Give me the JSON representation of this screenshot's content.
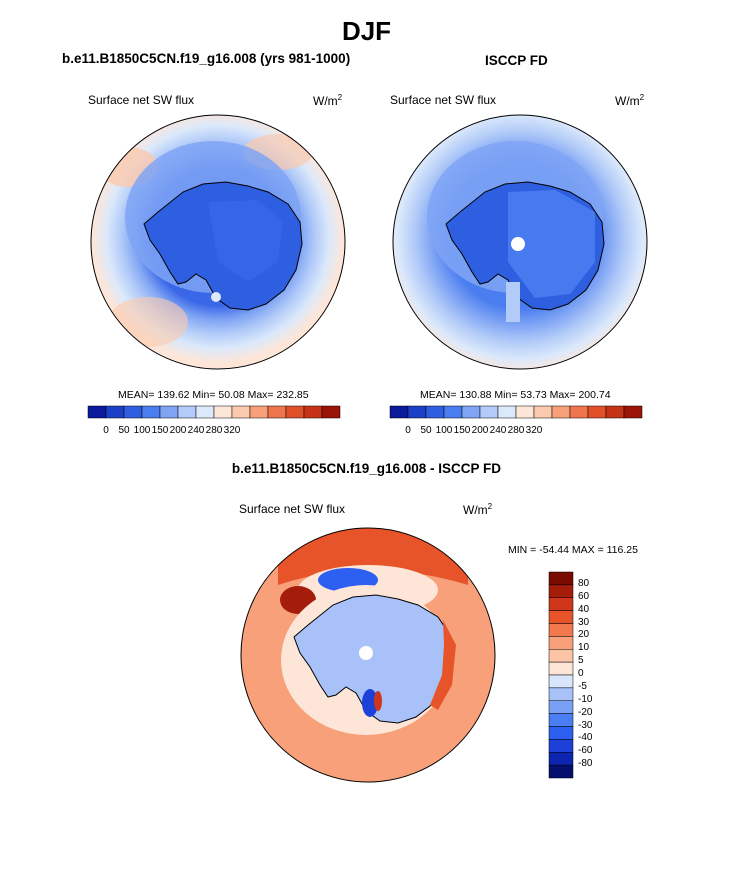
{
  "figure": {
    "season_title": "DJF",
    "units_base": "W/m",
    "units_exp": "2"
  },
  "panels": [
    {
      "title": "b.e11.B1850C5CN.f19_g16.008 (yrs 981-1000)",
      "variable_label": "Surface net SW flux",
      "stats": "MEAN= 139.62  Min=  50.08  Max= 232.85",
      "colorbar_ticks": [
        "0",
        "50",
        "100",
        "150",
        "200",
        "240",
        "280",
        "320"
      ]
    },
    {
      "title": "ISCCP FD",
      "variable_label": "Surface net SW flux",
      "stats": "MEAN= 130.88  Min=  53.73  Max= 200.74",
      "colorbar_ticks": [
        "0",
        "50",
        "100",
        "150",
        "200",
        "240",
        "280",
        "320"
      ]
    },
    {
      "title": "b.e11.B1850C5CN.f19_g16.008 - ISCCP FD",
      "variable_label": "Surface net SW flux",
      "stats": "MIN = -54.44 MAX = 116.25",
      "colorbar_ticks": [
        "80",
        "60",
        "40",
        "30",
        "20",
        "10",
        "5",
        "0",
        "-5",
        "-10",
        "-20",
        "-30",
        "-40",
        "-60",
        "-80"
      ]
    }
  ],
  "colors": {
    "abs_scale": [
      "#0a1a9a",
      "#1c3fc8",
      "#2e5fe0",
      "#4a7df0",
      "#7fa4f4",
      "#b2cbf8",
      "#dce9fb",
      "#fde6d8",
      "#fbc9ae",
      "#f7a07a",
      "#f0744c",
      "#e2502a",
      "#c53218",
      "#9a1408"
    ],
    "diff_scale": [
      "#04106e",
      "#0c24b0",
      "#1c40d8",
      "#2d5ff0",
      "#4a7ef4",
      "#7aa0f6",
      "#a8c2f9",
      "#d8e6fc",
      "#fde6d8",
      "#fbc4a6",
      "#f7a07a",
      "#f2784e",
      "#e8542a",
      "#d0361a",
      "#a41c0a",
      "#7a0a00"
    ],
    "land_dark": "#1f45d6",
    "land_mid": "#3a66e8",
    "land_light": "#7fa4f4"
  }
}
